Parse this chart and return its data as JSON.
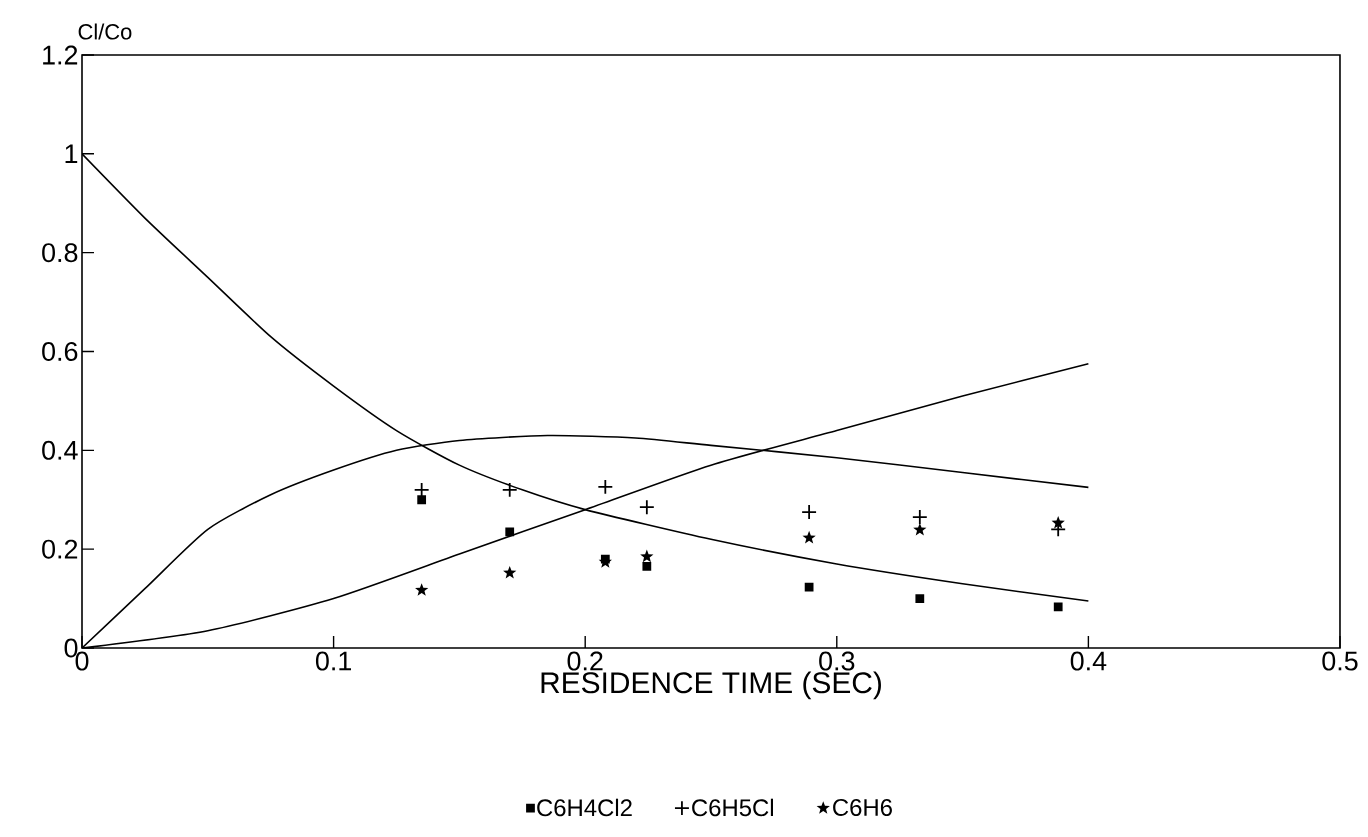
{
  "chart_data": {
    "type": "scatter",
    "xlabel": "RESIDENCE TIME (SEC)",
    "ylabel": "Cl/Co",
    "xlim": [
      0,
      0.5
    ],
    "ylim": [
      0,
      1.2
    ],
    "xticks": [
      0,
      0.1,
      0.2,
      0.3,
      0.4,
      0.5
    ],
    "yticks": [
      0,
      0.2,
      0.4,
      0.6,
      0.8,
      1,
      1.2
    ],
    "legend": "bottom",
    "series": [
      {
        "name": "C6H4Cl2",
        "color": "#000000",
        "marker": "square",
        "x": [
          0.135,
          0.17,
          0.208,
          0.2245,
          0.289,
          0.333,
          0.388
        ],
        "values": [
          0.3,
          0.235,
          0.18,
          0.165,
          0.123,
          0.1,
          0.083
        ]
      },
      {
        "name": "C6H5Cl",
        "color": "#000000",
        "marker": "cross",
        "x": [
          0.135,
          0.17,
          0.208,
          0.2245,
          0.289,
          0.333,
          0.388
        ],
        "values": [
          0.32,
          0.32,
          0.326,
          0.285,
          0.275,
          0.265,
          0.24
        ]
      },
      {
        "name": "C6H6",
        "color": "#000000",
        "marker": "star",
        "x": [
          0.135,
          0.17,
          0.208,
          0.2245,
          0.289,
          0.333,
          0.388
        ],
        "values": [
          0.117,
          0.152,
          0.174,
          0.185,
          0.223,
          0.239,
          0.253
        ]
      },
      {
        "type": "line",
        "color": "#000000",
        "marker": "none",
        "x": [
          0,
          0.025,
          0.05,
          0.075,
          0.1,
          0.125,
          0.15,
          0.175,
          0.2,
          0.25,
          0.3,
          0.35,
          0.4
        ],
        "values": [
          1,
          0.87,
          0.75,
          0.63,
          0.53,
          0.44,
          0.37,
          0.32,
          0.28,
          0.22,
          0.17,
          0.13,
          0.095
        ]
      },
      {
        "type": "line",
        "color": "#000000",
        "marker": "none",
        "x": [
          0,
          0.025,
          0.05,
          0.075,
          0.1,
          0.125,
          0.15,
          0.185,
          0.22,
          0.25,
          0.3,
          0.35,
          0.4
        ],
        "values": [
          0,
          0.12,
          0.24,
          0.31,
          0.36,
          0.4,
          0.42,
          0.43,
          0.425,
          0.41,
          0.385,
          0.355,
          0.325
        ]
      },
      {
        "type": "line",
        "color": "#000000",
        "marker": "none",
        "x": [
          0,
          0.05,
          0.1,
          0.15,
          0.2,
          0.25,
          0.3,
          0.35,
          0.4
        ],
        "values": [
          0,
          0.035,
          0.1,
          0.19,
          0.28,
          0.37,
          0.44,
          0.51,
          0.575
        ]
      }
    ]
  }
}
